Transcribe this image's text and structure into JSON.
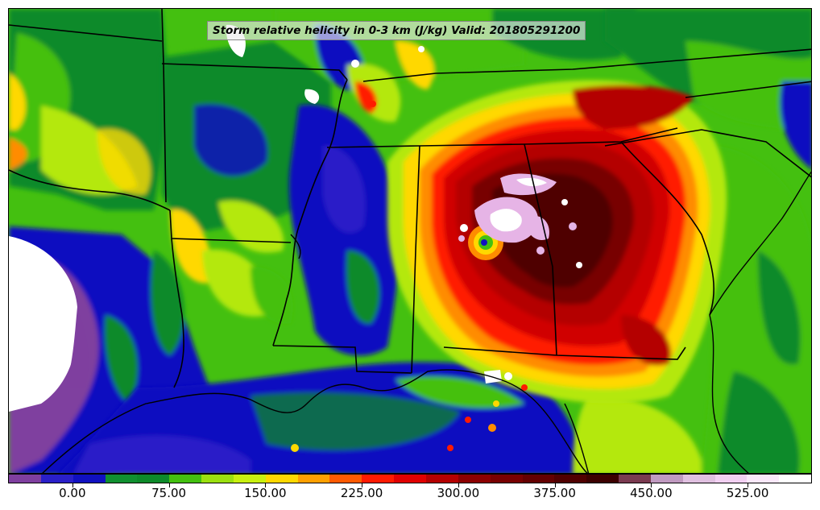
{
  "title": "Storm relative helicity in 0-3 km (J/kg) Valid: 201805291200",
  "colorbar": {
    "colors": [
      "#7f3f9f",
      "#2a1fc8",
      "#1010c0",
      "#109030",
      "#0d8a2a",
      "#44c010",
      "#9be010",
      "#c8f010",
      "#ffd800",
      "#ffa000",
      "#ff5a00",
      "#ff1a00",
      "#e00000",
      "#b40000",
      "#8c0000",
      "#780000",
      "#640000",
      "#500000",
      "#3c0000",
      "#7a3a50",
      "#c09ac0",
      "#e0c0e0",
      "#f2d0f2",
      "#fbe8fb",
      "#ffffff"
    ],
    "tick_labels": [
      "0.00",
      "75.00",
      "150.00",
      "225.00",
      "300.00",
      "375.00",
      "450.00",
      "525.00"
    ],
    "tick_values": [
      0,
      75,
      150,
      225,
      300,
      375,
      450,
      525
    ],
    "range": [
      -50,
      575
    ]
  },
  "field_colors": {
    "purple": "#7f3f9f",
    "blue": "#1010c0",
    "dark_green": "#0d8a2a",
    "green": "#44c010",
    "yellow_green": "#b4e810",
    "yellow": "#ffd800",
    "orange": "#ff8c00",
    "red": "#ff1a00",
    "dark_red": "#b40000",
    "maroon": "#5a0000",
    "pink": "#e6b4e6",
    "white": "#ffffff",
    "border": "#000000"
  }
}
